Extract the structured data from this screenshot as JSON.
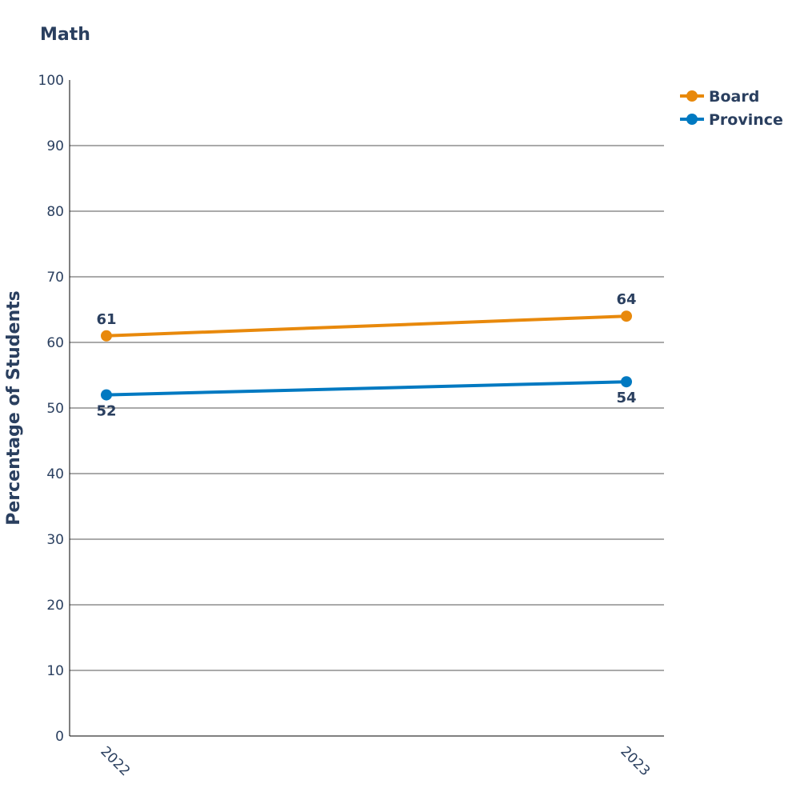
{
  "chart_data": {
    "type": "line",
    "title": "Math",
    "xlabel": "",
    "ylabel": "Percentage of Students",
    "categories": [
      "2022",
      "2023"
    ],
    "ylim": [
      0,
      100
    ],
    "yticks": [
      0,
      10,
      20,
      30,
      40,
      50,
      60,
      70,
      80,
      90,
      100
    ],
    "grid": true,
    "legend_position": "top-right",
    "series": [
      {
        "name": "Board",
        "values": [
          61,
          64
        ],
        "color": "#e8890c",
        "label_position": "top"
      },
      {
        "name": "Province",
        "values": [
          52,
          54
        ],
        "color": "#0079c1",
        "label_position": "bottom"
      }
    ],
    "text_color": "#2a3f5f"
  }
}
